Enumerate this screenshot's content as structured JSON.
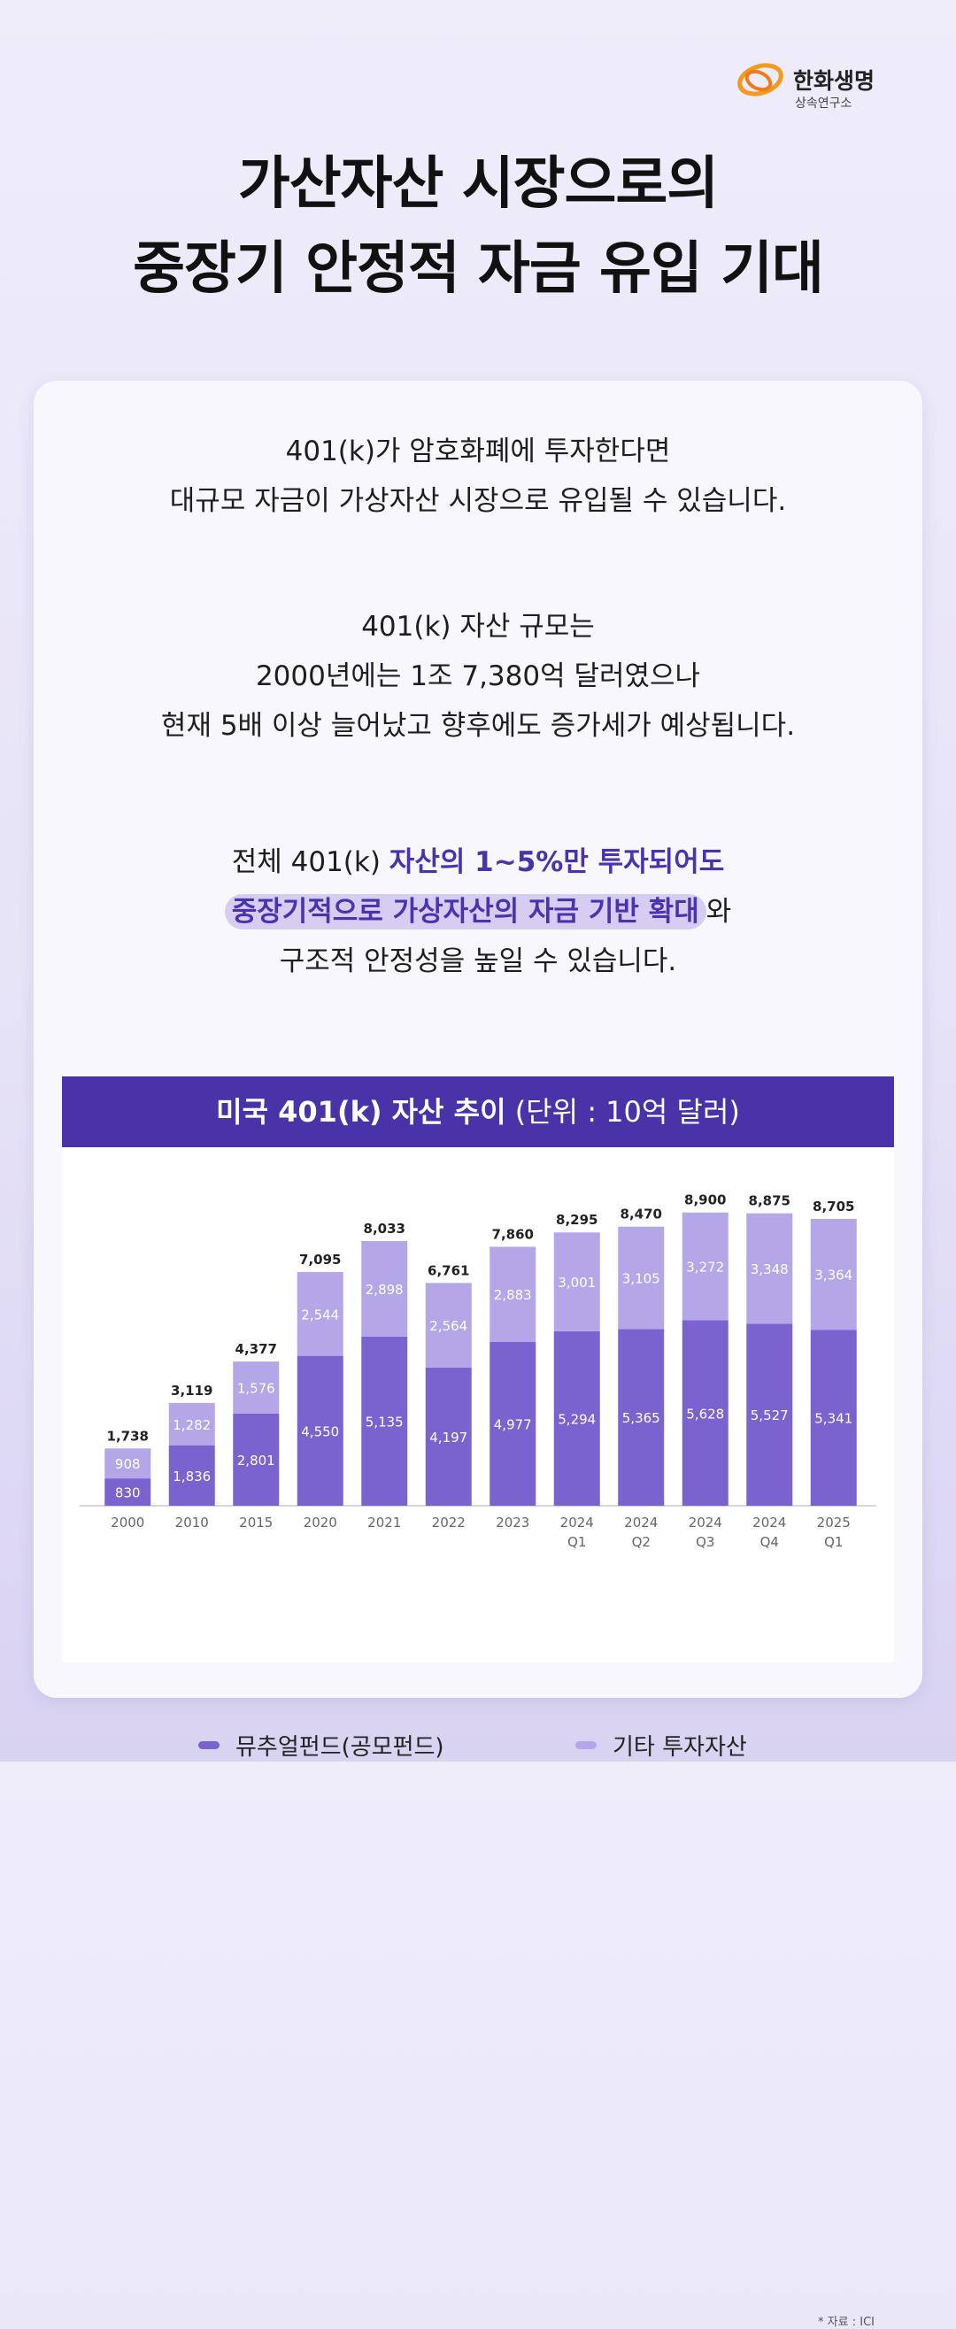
{
  "logo": {
    "brand": "한화생명",
    "sub": "상속연구소"
  },
  "title": {
    "line1": "가산자산 시장으로의",
    "line2": "중장기 안정적 자금 유입 기대"
  },
  "text": {
    "p1": [
      "401(k)가 암호화폐에 투자한다면",
      "대규모 자금이 가상자산 시장으로 유입될 수 있습니다."
    ],
    "p2": [
      "401(k) 자산 규모는",
      "2000년에는 1조 7,380억 달러였으나",
      "현재 5배 이상 늘어났고 향후에도 증가세가 예상됩니다."
    ],
    "p3": {
      "l1_a": "전체 401(k) ",
      "l1_b": "자산의 1~5%만 투자되어도",
      "l2_a": "중장기적으로 가상자산의 자금 기반 확대",
      "l2_b": "와",
      "l3": "구조적 안정성을 높일 수 있습니다."
    }
  },
  "chart_header": {
    "bold": "미국 401(k) 자산 추이",
    "normal": " (단위 : 10억 달러)"
  },
  "colors": {
    "mutual": "#7a63cf",
    "other": "#b5a6e8",
    "header": "#4a32a8",
    "highlight": "#4b33b0"
  },
  "chart_data": {
    "type": "bar",
    "stacked": true,
    "categories": [
      [
        "2000"
      ],
      [
        "2010"
      ],
      [
        "2015"
      ],
      [
        "2020"
      ],
      [
        "2021"
      ],
      [
        "2022"
      ],
      [
        "2023"
      ],
      [
        "2024",
        "Q1"
      ],
      [
        "2024",
        "Q2"
      ],
      [
        "2024",
        "Q3"
      ],
      [
        "2024",
        "Q4"
      ],
      [
        "2025",
        "Q1"
      ]
    ],
    "series": [
      {
        "name": "뮤추얼펀드(공모펀드)",
        "values": [
          830,
          1836,
          2801,
          4550,
          5135,
          4197,
          4977,
          5294,
          5365,
          5628,
          5527,
          5341
        ]
      },
      {
        "name": "기타 투자자산",
        "values": [
          908,
          1282,
          1576,
          2544,
          2898,
          2564,
          2883,
          3001,
          3105,
          3272,
          3348,
          3364
        ]
      }
    ],
    "totals": [
      1738,
      3119,
      4377,
      7095,
      8033,
      6761,
      7860,
      8295,
      8470,
      8900,
      8875,
      8705
    ],
    "ylim": [
      0,
      9000
    ],
    "grid": false,
    "legend": "bottom"
  },
  "source": "*  자료 : ICI"
}
